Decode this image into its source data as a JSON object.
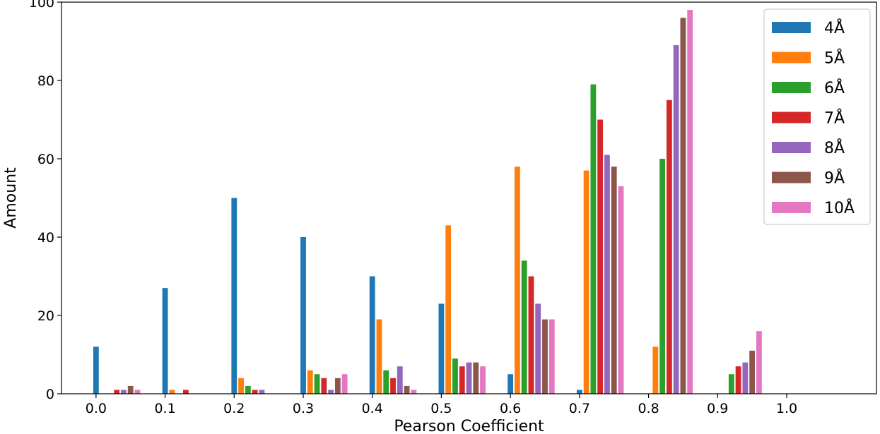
{
  "chart_data": {
    "type": "bar",
    "xlabel": "Pearson Coefficient",
    "ylabel": "Amount",
    "xticks": [
      "0.0",
      "0.1",
      "0.2",
      "0.3",
      "0.4",
      "0.5",
      "0.6",
      "0.7",
      "0.8",
      "0.9",
      "1.0"
    ],
    "yticks": [
      "0",
      "20",
      "40",
      "60",
      "80",
      "100"
    ],
    "ylim": [
      0,
      100
    ],
    "xlim": [
      -0.05,
      1.13
    ],
    "grid": false,
    "legend_position": "top-right",
    "categories": [
      "0.0",
      "0.1",
      "0.2",
      "0.3",
      "0.4",
      "0.5",
      "0.6",
      "0.7",
      "0.8",
      "0.9"
    ],
    "series": [
      {
        "name": "4Å",
        "color": "#1f77b4",
        "values": [
          12,
          27,
          50,
          40,
          30,
          23,
          5,
          1,
          0,
          0
        ]
      },
      {
        "name": "5Å",
        "color": "#ff7f0e",
        "values": [
          0,
          1,
          4,
          6,
          19,
          43,
          58,
          57,
          12,
          0
        ]
      },
      {
        "name": "6Å",
        "color": "#2ca02c",
        "values": [
          0,
          0,
          2,
          5,
          6,
          9,
          34,
          79,
          60,
          5
        ]
      },
      {
        "name": "7Å",
        "color": "#d62728",
        "values": [
          1,
          1,
          1,
          4,
          4,
          7,
          30,
          70,
          75,
          7
        ]
      },
      {
        "name": "8Å",
        "color": "#9467bd",
        "values": [
          1,
          0,
          1,
          1,
          7,
          8,
          23,
          61,
          89,
          8
        ]
      },
      {
        "name": "9Å",
        "color": "#8c564b",
        "values": [
          2,
          0,
          0,
          4,
          2,
          8,
          19,
          58,
          96,
          11
        ]
      },
      {
        "name": "10Å",
        "color": "#e377c2",
        "values": [
          1,
          0,
          0,
          5,
          1,
          7,
          19,
          53,
          98,
          16
        ]
      }
    ]
  }
}
